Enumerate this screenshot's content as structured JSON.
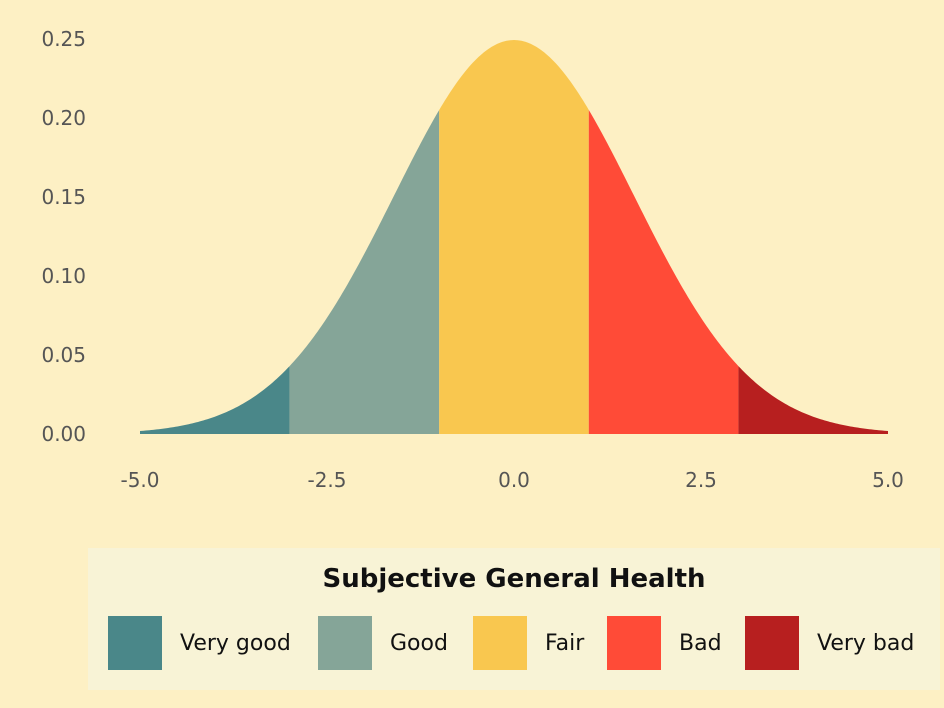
{
  "chart_data": {
    "type": "area",
    "distribution": "normal",
    "mean": 0,
    "sd": 1.6,
    "xlim": [
      -5,
      5
    ],
    "ylim": [
      0,
      0.25
    ],
    "x_ticks": [
      "-5.0",
      "-2.5",
      "0.0",
      "2.5",
      "5.0"
    ],
    "y_ticks": [
      "0.00",
      "0.05",
      "0.10",
      "0.15",
      "0.20",
      "0.25"
    ],
    "xlabel": "",
    "ylabel": "",
    "title": "",
    "grid": false,
    "series": [
      {
        "name": "Very good",
        "x_range": [
          -5,
          -3
        ],
        "color": "#4a8789"
      },
      {
        "name": "Good",
        "x_range": [
          -3,
          -1
        ],
        "color": "#85a598"
      },
      {
        "name": "Fair",
        "x_range": [
          -1,
          1
        ],
        "color": "#f9c74f"
      },
      {
        "name": "Bad",
        "x_range": [
          1,
          3
        ],
        "color": "#ff4b37"
      },
      {
        "name": "Very bad",
        "x_range": [
          3,
          5
        ],
        "color": "#b71f1f"
      }
    ],
    "legend": {
      "title": "Subjective General Health",
      "position": "bottom"
    }
  },
  "colors": {
    "background": "#fdf0c4",
    "legend_background": "#f8f3d6",
    "tick_text": "#555555"
  }
}
